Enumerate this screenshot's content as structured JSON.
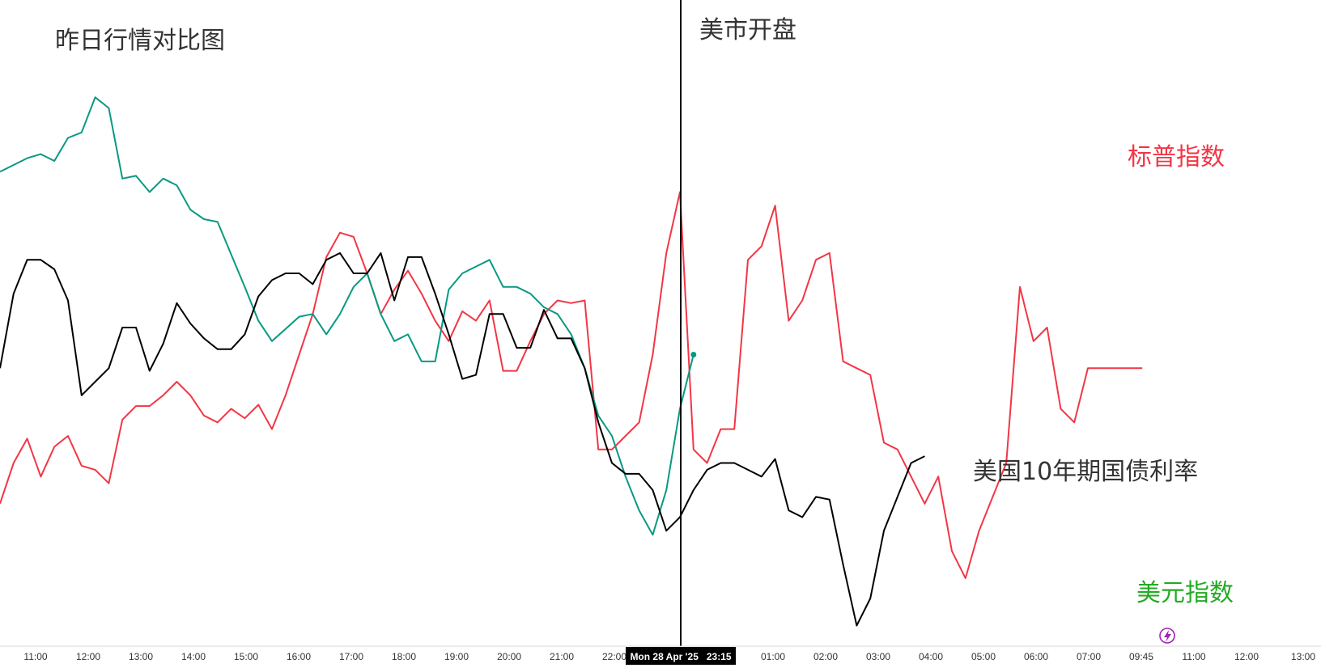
{
  "chart_data": {
    "type": "line",
    "title": "昨日行情对比图",
    "annotation": "美市开盘",
    "crosshair_label": "Mon 28 Apr '25   23:15",
    "x_ticks": [
      "11:00",
      "12:00",
      "13:00",
      "14:00",
      "15:00",
      "16:00",
      "17:00",
      "18:00",
      "19:00",
      "20:00",
      "21:00",
      "22:00",
      "01:00",
      "02:00",
      "03:00",
      "04:00",
      "05:00",
      "06:00",
      "07:00",
      "09:45",
      "11:00",
      "12:00",
      "13:00"
    ],
    "colors": {
      "sp500": "#f23645",
      "usd_index": "#089981",
      "us10y": "#000000",
      "usd_label": "#22ab22",
      "crosshair": "#000000",
      "axis_text": "#333333"
    },
    "series": [
      {
        "name": "标普指数",
        "key": "sp500",
        "values": [
          420,
          450,
          468,
          440,
          462,
          470,
          448,
          445,
          435,
          482,
          492,
          492,
          500,
          510,
          500,
          485,
          480,
          490,
          483,
          493,
          475,
          500,
          530,
          560,
          602,
          620,
          617,
          590,
          560,
          578,
          592,
          575,
          555,
          540,
          562,
          555,
          570,
          518,
          518,
          540,
          560,
          570,
          568,
          570,
          460,
          460,
          470,
          480,
          530,
          605,
          650,
          460,
          450,
          475,
          475,
          600,
          610,
          640,
          555,
          570,
          600,
          605,
          525,
          520,
          515,
          465,
          460,
          440,
          420,
          440,
          385,
          365,
          400,
          425,
          450,
          580,
          540,
          550,
          490,
          480,
          520,
          520,
          520,
          520,
          520
        ]
      },
      {
        "name": "美元指数",
        "key": "usd_index",
        "values": [
          665,
          670,
          675,
          678,
          673,
          690,
          694,
          720,
          712,
          660,
          662,
          650,
          660,
          655,
          637,
          630,
          628,
          604,
          580,
          555,
          540,
          549,
          558,
          560,
          545,
          560,
          580,
          590,
          560,
          540,
          545,
          525,
          525,
          578,
          590,
          595,
          600,
          580,
          580,
          575,
          565,
          560,
          545,
          520,
          485,
          470,
          440,
          415,
          397,
          430,
          490,
          530
        ]
      },
      {
        "name": "美国10年期国债利率",
        "key": "us10y",
        "values": [
          520,
          575,
          600,
          600,
          593,
          570,
          500,
          510,
          520,
          550,
          550,
          518,
          538,
          568,
          553,
          542,
          534,
          534,
          545,
          573,
          585,
          590,
          590,
          582,
          600,
          605,
          590,
          590,
          605,
          570,
          602,
          602,
          575,
          545,
          512,
          515,
          560,
          560,
          535,
          535,
          563,
          542,
          542,
          520,
          480,
          450,
          442,
          442,
          430,
          400,
          410,
          430,
          445,
          450,
          450,
          445,
          440,
          453,
          415,
          410,
          425,
          423,
          375,
          330,
          350,
          400,
          425,
          450,
          455
        ]
      }
    ],
    "labels": {
      "sp500": "标普指数",
      "us10y": "美国10年期国债利率",
      "usd_index": "美元指数"
    },
    "ylim": [
      350,
      750
    ],
    "grid": false,
    "legend": "inline-right",
    "icon": "lightning-icon"
  }
}
